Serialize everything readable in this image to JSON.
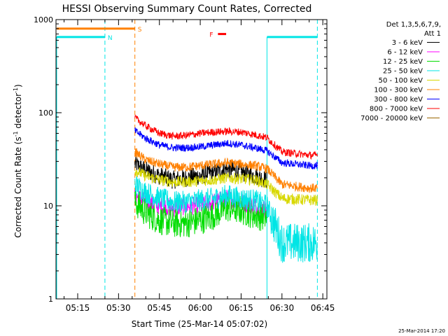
{
  "chart_data": {
    "type": "line",
    "title": "HESSI Observing Summary Count Rates, Corrected",
    "xlabel": "Start Time (25-Mar-14 05:07:02)",
    "ylabel_main": "Corrected Count Rate (s",
    "ylabel_sup1": "-1",
    "ylabel_mid": " detector",
    "ylabel_sup2": "-1",
    "ylabel_end": ")",
    "y_scale": "log",
    "ylim": [
      1,
      1000
    ],
    "xlim": [
      "05:07:02",
      "06:46:30"
    ],
    "x_ticks": [
      "05:15",
      "05:30",
      "05:45",
      "06:00",
      "06:15",
      "06:30",
      "06:45"
    ],
    "y_ticks": [
      {
        "value": 1,
        "label": "1"
      },
      {
        "value": 10,
        "label": "10"
      },
      {
        "value": 100,
        "label": "100"
      },
      {
        "value": 1000,
        "label": "1000"
      }
    ],
    "legend": {
      "placement": "right",
      "header1": "Det 1,3,5,6,7,9,",
      "header2": "Att 1"
    },
    "series": [
      {
        "name": "3 - 6 keV",
        "color": "#000000",
        "time": [
          "05:36:00",
          "05:40",
          "05:45",
          "05:50",
          "05:55",
          "06:00",
          "06:05",
          "06:10",
          "06:15",
          "06:20",
          "06:24:30"
        ],
        "values": [
          28,
          24,
          21,
          19,
          20,
          21,
          23,
          25,
          23,
          21,
          19
        ]
      },
      {
        "name": "6 - 12 keV",
        "color": "#ff00ff",
        "time": [
          "05:36:00",
          "05:40",
          "05:45",
          "05:50",
          "05:55",
          "06:00",
          "06:05",
          "06:10",
          "06:15",
          "06:20",
          "06:24:30"
        ],
        "values": [
          13,
          11,
          10,
          9.5,
          10,
          10,
          11,
          12,
          11,
          10,
          9
        ]
      },
      {
        "name": "12 - 25 keV",
        "color": "#00dd00",
        "time": [
          "05:36:00",
          "05:40",
          "05:45",
          "05:50",
          "05:55",
          "06:00",
          "06:05",
          "06:10",
          "06:15",
          "06:20",
          "06:24:30"
        ],
        "values": [
          11,
          8.5,
          7,
          6.5,
          6.5,
          7,
          8,
          9.5,
          9,
          8,
          7.5
        ]
      },
      {
        "name": "25 - 50 keV",
        "color": "#00e5e5",
        "time": [
          "05:36:00",
          "05:40",
          "05:45",
          "05:50",
          "05:55",
          "06:00",
          "06:05",
          "06:10",
          "06:15",
          "06:20",
          "06:24:30",
          "06:30",
          "06:40",
          "06:43"
        ],
        "values": [
          17,
          14,
          12,
          11,
          11,
          11.5,
          12,
          13,
          12,
          11.5,
          10,
          4,
          4,
          4
        ]
      },
      {
        "name": "50 - 100 keV",
        "color": "#d8d800",
        "time": [
          "05:36:00",
          "05:40",
          "05:45",
          "05:50",
          "05:55",
          "06:00",
          "06:05",
          "06:10",
          "06:15",
          "06:20",
          "06:24:30",
          "06:30",
          "06:40",
          "06:43"
        ],
        "values": [
          24,
          21,
          19,
          18,
          18,
          18.5,
          19,
          20,
          19.5,
          19,
          17,
          12,
          11.5,
          11.5
        ]
      },
      {
        "name": "100 - 300 keV",
        "color": "#ff8000",
        "time": [
          "05:36:00",
          "05:40",
          "05:45",
          "05:50",
          "05:55",
          "06:00",
          "06:05",
          "06:10",
          "06:15",
          "06:20",
          "06:24:30",
          "06:30",
          "06:40",
          "06:43"
        ],
        "values": [
          38,
          31,
          28,
          26,
          26,
          27,
          28,
          29,
          28,
          27,
          25,
          17,
          15.5,
          15.5
        ]
      },
      {
        "name": "300 - 800 keV",
        "color": "#0000ff",
        "time": [
          "05:36:00",
          "05:40",
          "05:45",
          "05:50",
          "05:55",
          "06:00",
          "06:05",
          "06:10",
          "06:15",
          "06:20",
          "06:24:30",
          "06:30",
          "06:40",
          "06:43"
        ],
        "values": [
          64,
          53,
          45,
          42,
          42,
          43,
          45,
          47,
          45,
          42,
          39,
          29,
          27,
          27
        ]
      },
      {
        "name": "800 - 7000 keV",
        "color": "#ff0000",
        "time": [
          "05:36:00",
          "05:40",
          "05:45",
          "05:50",
          "05:55",
          "06:00",
          "06:05",
          "06:10",
          "06:15",
          "06:20",
          "06:24:30",
          "06:30",
          "06:40",
          "06:43"
        ],
        "values": [
          88,
          72,
          60,
          56,
          57,
          60,
          62,
          63,
          62,
          58,
          54,
          38,
          35,
          35
        ]
      },
      {
        "name": "7000 - 20000 keV",
        "color": "#996600",
        "time": [],
        "values": []
      }
    ],
    "annotations": [
      {
        "label": "N",
        "color": "#00e5e5"
      },
      {
        "label": "S",
        "color": "#ff8000"
      },
      {
        "label": "F",
        "color": "#ff0000"
      }
    ],
    "timestamp": "25-Mar-2014 17:20"
  }
}
